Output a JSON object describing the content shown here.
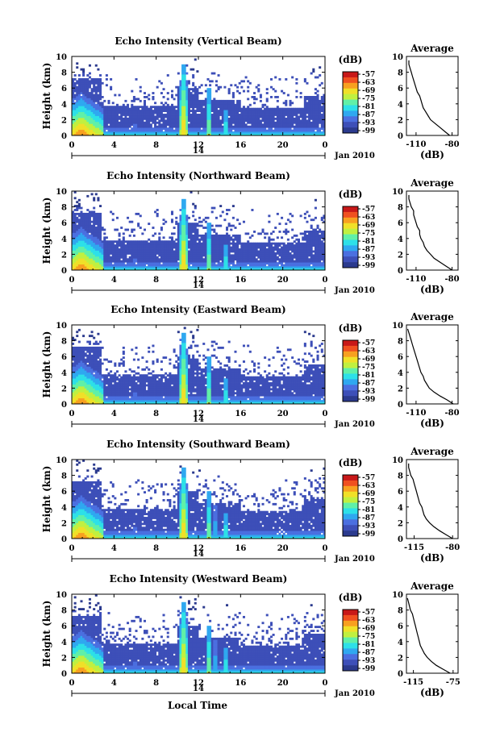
{
  "figure": {
    "xlabel": "Local Time",
    "date_label": "Jan 2010",
    "day_label": "14",
    "ylabel": "Height (km)"
  },
  "colors": [
    "#2b3a8e",
    "#3d4fb8",
    "#4b6fe0",
    "#2fa8f0",
    "#2de0e8",
    "#60f0a8",
    "#c0f040",
    "#f0e028",
    "#f8a020",
    "#f05020",
    "#c81818"
  ],
  "colorbar": {
    "unit": "(dB)",
    "ticks": [
      "-57",
      "-63",
      "-69",
      "-75",
      "-81",
      "-87",
      "-93",
      "-99"
    ]
  },
  "chart_data": [
    {
      "type": "heatmap",
      "name": "vertical",
      "title": "Echo Intensity (Vertical Beam)",
      "x_ticks": [
        "0",
        "4",
        "8",
        "12",
        "16",
        "20",
        "0"
      ],
      "xlim": [
        0,
        24
      ],
      "y_ticks": [
        "0",
        "2",
        "4",
        "6",
        "8",
        "10"
      ],
      "ylim": [
        0,
        10
      ],
      "profile": {
        "type": "line",
        "title": "Average",
        "xlabel": "(dB)",
        "x_ticks": [
          "-110",
          "-80"
        ],
        "xlim": [
          -118,
          -75
        ],
        "y_ticks": [
          "0",
          "2",
          "4",
          "6",
          "8",
          "10"
        ],
        "ylim": [
          0,
          10
        ],
        "height": [
          0.0,
          0.5,
          1.0,
          1.5,
          2.0,
          2.5,
          3.0,
          3.5,
          4.0,
          4.5,
          5.0,
          5.5,
          6.0,
          6.5,
          7.0,
          7.5,
          8.0,
          8.5,
          9.0,
          9.5
        ],
        "values": [
          -82,
          -86,
          -90,
          -94,
          -98,
          -100,
          -102,
          -104,
          -105,
          -106,
          -107,
          -109,
          -110,
          -111,
          -112,
          -113,
          -114,
          -115,
          -116,
          -116
        ]
      }
    },
    {
      "type": "heatmap",
      "name": "northward",
      "title": "Echo Intensity (Northward Beam)",
      "x_ticks": [
        "0",
        "4",
        "8",
        "12",
        "16",
        "20",
        "0"
      ],
      "xlim": [
        0,
        24
      ],
      "y_ticks": [
        "0",
        "2",
        "4",
        "6",
        "8",
        "10"
      ],
      "ylim": [
        0,
        10
      ],
      "profile": {
        "type": "line",
        "title": "Average",
        "xlabel": "(dB)",
        "x_ticks": [
          "-110",
          "-80"
        ],
        "xlim": [
          -118,
          -75
        ],
        "y_ticks": [
          "0",
          "2",
          "4",
          "6",
          "8",
          "10"
        ],
        "ylim": [
          0,
          10
        ],
        "height": [
          0.0,
          0.5,
          1.0,
          1.5,
          2.0,
          2.5,
          3.0,
          3.5,
          4.0,
          4.5,
          5.0,
          5.5,
          6.0,
          6.5,
          7.0,
          7.5,
          8.0,
          8.5,
          9.0,
          9.5
        ],
        "values": [
          -80,
          -85,
          -90,
          -95,
          -98,
          -101,
          -103,
          -104,
          -106,
          -107,
          -107,
          -109,
          -110,
          -111,
          -112,
          -112,
          -114,
          -115,
          -116,
          -116
        ]
      }
    },
    {
      "type": "heatmap",
      "name": "eastward",
      "title": "Echo Intensity (Eastward Beam)",
      "x_ticks": [
        "0",
        "4",
        "8",
        "12",
        "16",
        "20",
        "0"
      ],
      "xlim": [
        0,
        24
      ],
      "y_ticks": [
        "0",
        "2",
        "4",
        "6",
        "8",
        "10"
      ],
      "ylim": [
        0,
        10
      ],
      "profile": {
        "type": "line",
        "title": "Average",
        "xlabel": "(dB)",
        "x_ticks": [
          "-110",
          "-80"
        ],
        "xlim": [
          -118,
          -75
        ],
        "y_ticks": [
          "0",
          "2",
          "4",
          "6",
          "8",
          "10"
        ],
        "ylim": [
          0,
          10
        ],
        "height": [
          0.0,
          0.5,
          1.0,
          1.5,
          2.0,
          2.5,
          3.0,
          3.5,
          4.0,
          4.5,
          5.0,
          5.5,
          6.0,
          6.5,
          7.0,
          7.5,
          8.0,
          8.5,
          9.0,
          9.5
        ],
        "values": [
          -79,
          -84,
          -90,
          -95,
          -99,
          -101,
          -103,
          -104,
          -106,
          -107,
          -108,
          -109,
          -110,
          -111,
          -112,
          -113,
          -114,
          -115,
          -116,
          -117
        ]
      }
    },
    {
      "type": "heatmap",
      "name": "southward",
      "title": "Echo Intensity (Southward Beam)",
      "x_ticks": [
        "0",
        "4",
        "8",
        "12",
        "16",
        "20",
        "0"
      ],
      "xlim": [
        0,
        24
      ],
      "y_ticks": [
        "0",
        "2",
        "4",
        "6",
        "8",
        "10"
      ],
      "ylim": [
        0,
        10
      ],
      "profile": {
        "type": "line",
        "title": "Average",
        "xlabel": "(dB)",
        "x_ticks": [
          "-115",
          "-80"
        ],
        "xlim": [
          -122,
          -75
        ],
        "y_ticks": [
          "0",
          "2",
          "4",
          "6",
          "8",
          "10"
        ],
        "ylim": [
          0,
          10
        ],
        "height": [
          0.0,
          0.5,
          1.0,
          1.5,
          2.0,
          2.5,
          3.0,
          3.5,
          4.0,
          4.5,
          5.0,
          5.5,
          6.0,
          6.5,
          7.0,
          7.5,
          8.0,
          8.5,
          9.0,
          9.5
        ],
        "values": [
          -80,
          -86,
          -92,
          -97,
          -101,
          -104,
          -106,
          -107,
          -108,
          -110,
          -111,
          -112,
          -113,
          -114,
          -115,
          -116,
          -118,
          -119,
          -120,
          -120
        ]
      }
    },
    {
      "type": "heatmap",
      "name": "westward",
      "title": "Echo Intensity (Westward Beam)",
      "x_ticks": [
        "0",
        "4",
        "8",
        "12",
        "16",
        "20",
        "0"
      ],
      "xlim": [
        0,
        24
      ],
      "y_ticks": [
        "0",
        "2",
        "4",
        "6",
        "8",
        "10"
      ],
      "ylim": [
        0,
        10
      ],
      "profile": {
        "type": "line",
        "title": "Average",
        "xlabel": "(dB)",
        "x_ticks": [
          "-115",
          "-75"
        ],
        "xlim": [
          -122,
          -70
        ],
        "y_ticks": [
          "0",
          "2",
          "4",
          "6",
          "8",
          "10"
        ],
        "ylim": [
          0,
          10
        ],
        "height": [
          0.0,
          0.5,
          1.0,
          1.5,
          2.0,
          2.5,
          3.0,
          3.5,
          4.0,
          4.5,
          5.0,
          5.5,
          6.0,
          6.5,
          7.0,
          7.5,
          8.0,
          8.5,
          9.0,
          9.5
        ],
        "values": [
          -78,
          -85,
          -92,
          -97,
          -101,
          -104,
          -106,
          -108,
          -109,
          -110,
          -111,
          -112,
          -113,
          -114,
          -115,
          -116,
          -118,
          -119,
          -120,
          -121
        ]
      }
    }
  ]
}
